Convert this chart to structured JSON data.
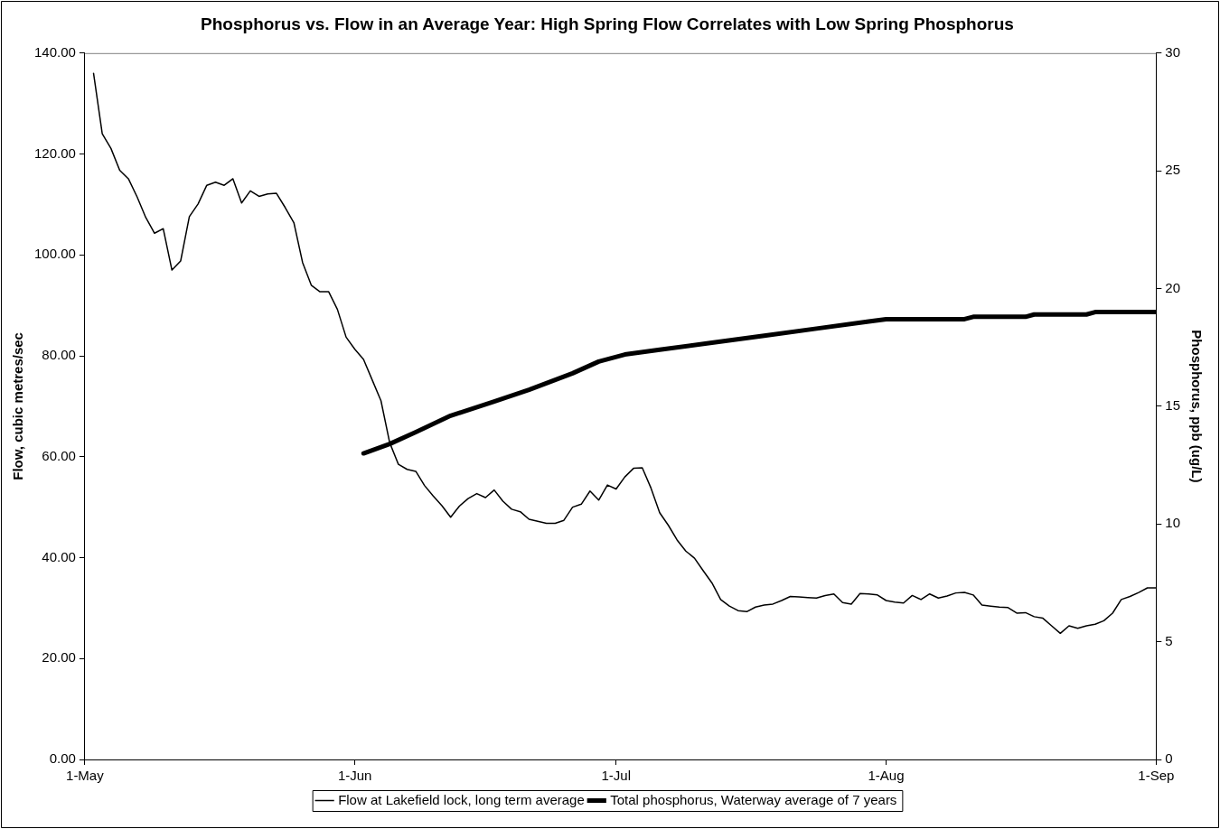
{
  "chart_data": {
    "type": "line",
    "title": "Phosphorus vs. Flow in an Average Year: High Spring Flow Correlates with Low Spring Phosphorus",
    "ylabel": "Flow, cubic metres/sec",
    "y2label": "Phosphorus, ppb (ug/L)",
    "xlim": [
      "--05-01",
      "--09-01"
    ],
    "xticks": [
      {
        "value": "--05-01",
        "label": "1-May"
      },
      {
        "value": "--06-01",
        "label": "1-Jun"
      },
      {
        "value": "--07-01",
        "label": "1-Jul"
      },
      {
        "value": "--08-01",
        "label": "1-Aug"
      },
      {
        "value": "--09-01",
        "label": "1-Sep"
      }
    ],
    "ylim": [
      0,
      140
    ],
    "yticks": [
      {
        "value": 0,
        "label": "0.00"
      },
      {
        "value": 20,
        "label": "20.00"
      },
      {
        "value": 40,
        "label": "40.00"
      },
      {
        "value": 60,
        "label": "60.00"
      },
      {
        "value": 80,
        "label": "80.00"
      },
      {
        "value": 100,
        "label": "100.00"
      },
      {
        "value": 120,
        "label": "120.00"
      },
      {
        "value": 140,
        "label": "140.00"
      }
    ],
    "y2lim": [
      0,
      30
    ],
    "y2ticks": [
      0,
      5,
      10,
      15,
      20,
      25,
      30
    ],
    "grid": false,
    "legend": "bottom",
    "marker": "none",
    "line_style": "solid",
    "series": [
      {
        "name": "Flow at Lakefield lock, long term average",
        "color": "#000000",
        "x": [
          "--05-02",
          "--05-03",
          "--05-04",
          "--05-05",
          "--05-06",
          "--05-07",
          "--05-08",
          "--05-09",
          "--05-10",
          "--05-11",
          "--05-12",
          "--05-13",
          "--05-14",
          "--05-15",
          "--05-16",
          "--05-17",
          "--05-18",
          "--05-19",
          "--05-20",
          "--05-21",
          "--05-22",
          "--05-23",
          "--05-24",
          "--05-25",
          "--05-26",
          "--05-27",
          "--05-28",
          "--05-29",
          "--05-30",
          "--05-31",
          "--06-01",
          "--06-02",
          "--06-03",
          "--06-04",
          "--06-05",
          "--06-06",
          "--06-07",
          "--06-08",
          "--06-09",
          "--06-10",
          "--06-11",
          "--06-12",
          "--06-13",
          "--06-14",
          "--06-15",
          "--06-16",
          "--06-17",
          "--06-18",
          "--06-19",
          "--06-20",
          "--06-21",
          "--06-22",
          "--06-23",
          "--06-24",
          "--06-25",
          "--06-26",
          "--06-27",
          "--06-28",
          "--06-29",
          "--06-30",
          "--07-01",
          "--07-02",
          "--07-03",
          "--07-04",
          "--07-05",
          "--07-06",
          "--07-07",
          "--07-08",
          "--07-09",
          "--07-10",
          "--07-11",
          "--07-12",
          "--07-13",
          "--07-14",
          "--07-15",
          "--07-16",
          "--07-17",
          "--07-18",
          "--07-19",
          "--07-20",
          "--07-21",
          "--07-22",
          "--07-23",
          "--07-24",
          "--07-25",
          "--07-26",
          "--07-27",
          "--07-28",
          "--07-29",
          "--07-30",
          "--07-31",
          "--08-01",
          "--08-02",
          "--08-03",
          "--08-04",
          "--08-05",
          "--08-06",
          "--08-07",
          "--08-08",
          "--08-09",
          "--08-10",
          "--08-11",
          "--08-12",
          "--08-13",
          "--08-14",
          "--08-15",
          "--08-16",
          "--08-17",
          "--08-18",
          "--08-19",
          "--08-20",
          "--08-21",
          "--08-22",
          "--08-23",
          "--08-24",
          "--08-25",
          "--08-26",
          "--08-27",
          "--08-28",
          "--08-29",
          "--08-30",
          "--08-31",
          "--09-01"
        ],
        "values": [
          136,
          124,
          121.1,
          116.8,
          115.1,
          111.5,
          107.4,
          104.3,
          105.2,
          97.0,
          98.8,
          107.6,
          110.1,
          113.8,
          114.4,
          113.8,
          115.1,
          110.3,
          112.7,
          111.6,
          112.1,
          112.2,
          109.4,
          106.4,
          98.5,
          94.0,
          92.7,
          92.7,
          89.2,
          83.7,
          81.3,
          79.3,
          75.2,
          71.1,
          62.8,
          58.5,
          57.5,
          57.1,
          54.3,
          52.2,
          50.3,
          48.0,
          50.2,
          51.7,
          52.7,
          51.9,
          53.4,
          51.2,
          49.6,
          49.1,
          47.6,
          47.2,
          46.8,
          46.8,
          47.4,
          50.0,
          50.6,
          53.2,
          51.4,
          54.4,
          53.6,
          56.0,
          57.7,
          57.8,
          53.8,
          48.9,
          46.4,
          43.5,
          41.3,
          39.9,
          37.4,
          35.0,
          31.7,
          30.4,
          29.5,
          29.3,
          30.2,
          30.6,
          30.8,
          31.5,
          32.3,
          32.2,
          32.1,
          32.0,
          32.5,
          32.8,
          31.1,
          30.8,
          32.9,
          32.8,
          32.6,
          31.5,
          31.2,
          31.0,
          32.5,
          31.7,
          32.8,
          32.0,
          32.4,
          33.0,
          33.1,
          32.6,
          30.6,
          30.4,
          30.2,
          30.1,
          29.0,
          29.1,
          28.3,
          28.0,
          26.5,
          25.0,
          26.5,
          26.0,
          26.5,
          26.8,
          27.5,
          29.0,
          31.7,
          32.3,
          33.1,
          34.0,
          34.0
        ]
      },
      {
        "name": "Total phosphorus, Waterway average of 7 years",
        "color": "#000000",
        "axis": "y2",
        "x": [
          "--06-02",
          "--06-05",
          "--06-08",
          "--06-12",
          "--06-17",
          "--06-21",
          "--06-26",
          "--06-29",
          "--07-02",
          "--07-06",
          "--07-12",
          "--07-18",
          "--07-24",
          "--07-30",
          "--08-01",
          "--08-10",
          "--08-11",
          "--08-17",
          "--08-18",
          "--08-24",
          "--08-25",
          "--09-01"
        ],
        "values": [
          13.0,
          13.4,
          13.9,
          14.6,
          15.2,
          15.7,
          16.4,
          16.9,
          17.2,
          17.4,
          17.7,
          18.0,
          18.3,
          18.6,
          18.7,
          18.7,
          18.8,
          18.8,
          18.9,
          18.9,
          19.0,
          19.0
        ]
      }
    ]
  }
}
